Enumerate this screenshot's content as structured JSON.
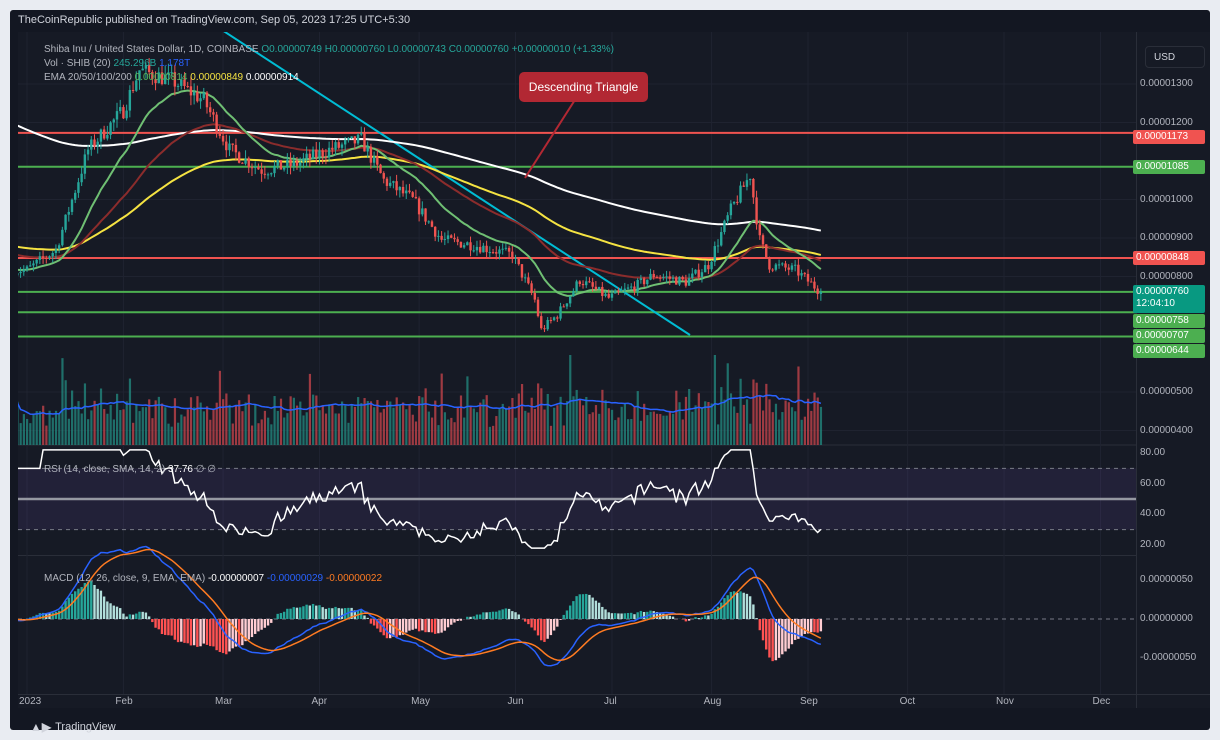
{
  "publisher_line": "TheCoinRepublic published on TradingView.com, Sep 05, 2023 17:25 UTC+5:30",
  "legend": {
    "symbol": "Shiba Inu / United States Dollar, 1D, COINBASE",
    "open": "O0.00000749",
    "high": "H0.00000760",
    "low": "L0.00000743",
    "close": "C0.00000760",
    "change": "+0.00000010 (+1.33%)",
    "vol_label": "Vol · SHIB (20)",
    "vol_value": "245.296B",
    "vol_ma": "1.178T",
    "ema_label": "EMA 20/50/100/200",
    "ema20": "0.00000814",
    "ema50": "",
    "ema100": "0.00000849",
    "ema200": "0.00000914",
    "rsi_label": "RSI (14, close, SMA, 14, 2)",
    "rsi_value": "37.76",
    "rsi_extra": "∅ ∅",
    "macd_label": "MACD (12, 26, close, 9, EMA, EMA)",
    "macd_hist": "-0.00000007",
    "macd_line": "-0.00000029",
    "macd_signal": "-0.00000022"
  },
  "currency": "USD",
  "annotation": "Descending Triangle",
  "price_axis": [
    [
      "0.00001300",
      1300
    ],
    [
      "0.00001200",
      1200
    ],
    [
      "0.00001000",
      1000
    ],
    [
      "0.00000900",
      900
    ],
    [
      "0.00000800",
      800
    ],
    [
      "0.00000500",
      500
    ],
    [
      "0.00000400",
      400
    ]
  ],
  "levels": [
    {
      "label": "0.00001173",
      "value": 1173,
      "color": "#f05350"
    },
    {
      "label": "0.00001085",
      "value": 1085,
      "color": "#4caf50"
    },
    {
      "label": "0.00000848",
      "value": 848,
      "color": "#f05350"
    },
    {
      "label": "0.00000758",
      "value": 758,
      "color": "#4caf50"
    },
    {
      "label": "0.00000707",
      "value": 707,
      "color": "#4caf50"
    },
    {
      "label": "0.00000644",
      "value": 644,
      "color": "#4caf50"
    }
  ],
  "current_price": {
    "label": "0.00000760",
    "countdown": "12:04:10",
    "color": "#089981"
  },
  "rsi_axis": [
    "80.00",
    "60.00",
    "40.00",
    "20.00"
  ],
  "macd_axis": [
    "0.00000050",
    "0.00000000",
    "-0.00000050"
  ],
  "time_axis": [
    "2023",
    "Feb",
    "Mar",
    "Apr",
    "May",
    "Jun",
    "Jul",
    "Aug",
    "Sep",
    "Oct",
    "Nov",
    "Dec"
  ],
  "brand": "TradingView",
  "chart_data": {
    "type": "candlestick",
    "unit": "USD x 1e-8",
    "close_waypoints": [
      [
        "2023-01-01",
        817
      ],
      [
        "2023-01-10",
        869
      ],
      [
        "2023-01-20",
        1129
      ],
      [
        "2023-01-31",
        1232
      ],
      [
        "2023-02-05",
        1336
      ],
      [
        "2023-02-15",
        1310
      ],
      [
        "2023-02-25",
        1258
      ],
      [
        "2023-03-05",
        1129
      ],
      [
        "2023-03-15",
        1077
      ],
      [
        "2023-03-25",
        1090
      ],
      [
        "2023-04-05",
        1129
      ],
      [
        "2023-04-15",
        1155
      ],
      [
        "2023-04-22",
        1050
      ],
      [
        "2023-05-01",
        999
      ],
      [
        "2023-05-10",
        895
      ],
      [
        "2023-05-20",
        882
      ],
      [
        "2023-06-01",
        856
      ],
      [
        "2023-06-08",
        739
      ],
      [
        "2023-06-10",
        661
      ],
      [
        "2023-06-15",
        700
      ],
      [
        "2023-06-22",
        791
      ],
      [
        "2023-07-01",
        744
      ],
      [
        "2023-07-10",
        778
      ],
      [
        "2023-07-15",
        804
      ],
      [
        "2023-07-25",
        786
      ],
      [
        "2023-08-01",
        830
      ],
      [
        "2023-08-08",
        973
      ],
      [
        "2023-08-14",
        1064
      ],
      [
        "2023-08-17",
        895
      ],
      [
        "2023-08-20",
        830
      ],
      [
        "2023-08-28",
        817
      ],
      [
        "2023-09-05",
        760
      ]
    ],
    "ema_colors": {
      "ema20": "#6fbf73",
      "ema50": "#8b2c2c",
      "ema100": "#f5e342",
      "ema200": "#ffffff"
    },
    "trendline_color": "#00bcd4",
    "rsi_bands": [
      30,
      50,
      70
    ],
    "macd_colors": {
      "macd": "#2962ff",
      "signal": "#ff7b22"
    }
  }
}
